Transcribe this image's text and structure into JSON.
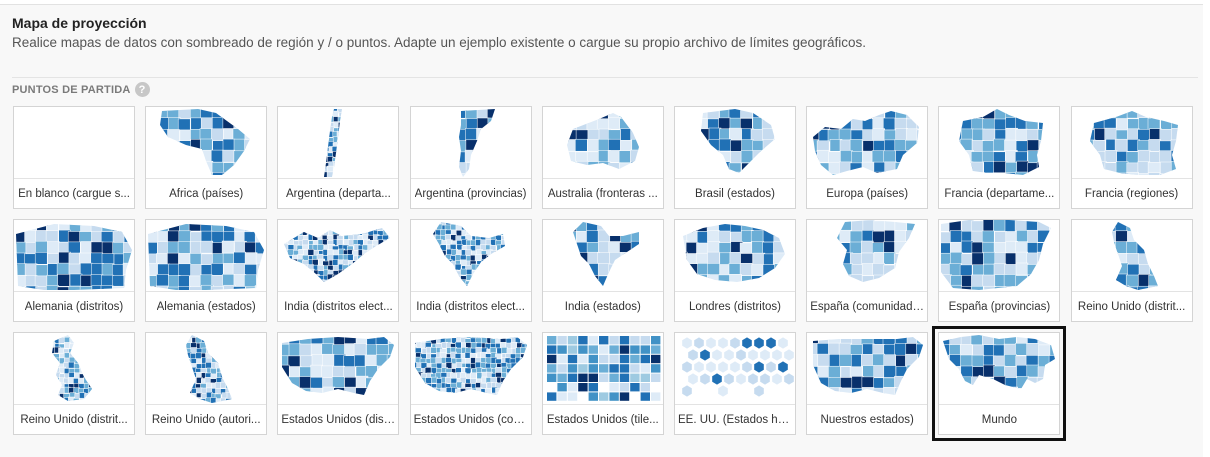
{
  "header": {
    "title": "Mapa de proyección",
    "description": "Realice mapas de datos con sombreado de región y / o puntos. Adapte un ejemplo existente o cargue su propio archivo de límites geográficos."
  },
  "section": {
    "label": "PUNTOS DE PARTIDA",
    "help_glyph": "?"
  },
  "colors": {
    "map_dark": "#08306b",
    "map_mid": "#2171b5",
    "map_light": "#6baed6",
    "map_pale": "#c6dbef",
    "selected_border": "#111111"
  },
  "templates": [
    {
      "label": "En blanco (cargue s...",
      "icon": "blank-map-icon"
    },
    {
      "label": "África (países)",
      "icon": "africa-map-icon"
    },
    {
      "label": "Argentina (departa...",
      "icon": "argentina-departments-map-icon"
    },
    {
      "label": "Argentina (provincias)",
      "icon": "argentina-provinces-map-icon"
    },
    {
      "label": "Australia (fronteras ...",
      "icon": "australia-map-icon"
    },
    {
      "label": "Brasil (estados)",
      "icon": "brazil-map-icon"
    },
    {
      "label": "Europa (países)",
      "icon": "europe-map-icon"
    },
    {
      "label": "Francia (departame...",
      "icon": "france-departments-map-icon"
    },
    {
      "label": "Francia (regiones)",
      "icon": "france-regions-map-icon"
    },
    {
      "label": "Alemania (distritos)",
      "icon": "germany-districts-map-icon"
    },
    {
      "label": "Alemania (estados)",
      "icon": "germany-states-map-icon"
    },
    {
      "label": "India (distritos elect...",
      "icon": "india-electoral-map-icon"
    },
    {
      "label": "India (distritos elect...",
      "icon": "india-electoral-2-map-icon"
    },
    {
      "label": "India (estados)",
      "icon": "india-states-map-icon"
    },
    {
      "label": "Londres (distritos)",
      "icon": "london-map-icon"
    },
    {
      "label": "España (comunidades)",
      "icon": "spain-communities-map-icon"
    },
    {
      "label": "España (provincias)",
      "icon": "spain-provinces-map-icon"
    },
    {
      "label": "Reino Unido (distrit...",
      "icon": "uk-districts-map-icon"
    },
    {
      "label": "Reino Unido (distrit...",
      "icon": "uk-districts-2-map-icon"
    },
    {
      "label": "Reino Unido (autori...",
      "icon": "uk-authorities-map-icon"
    },
    {
      "label": "Estados Unidos (dist...",
      "icon": "usa-districts-map-icon"
    },
    {
      "label": "Estados Unidos (con...",
      "icon": "usa-counties-map-icon"
    },
    {
      "label": "Estados Unidos (tile...",
      "icon": "usa-tiles-map-icon"
    },
    {
      "label": "EE. UU. (Estados hex...",
      "icon": "usa-hex-map-icon"
    },
    {
      "label": "Nuestros estados)",
      "icon": "usa-states-map-icon"
    },
    {
      "label": "Mundo",
      "icon": "world-map-icon",
      "selected": true
    }
  ]
}
